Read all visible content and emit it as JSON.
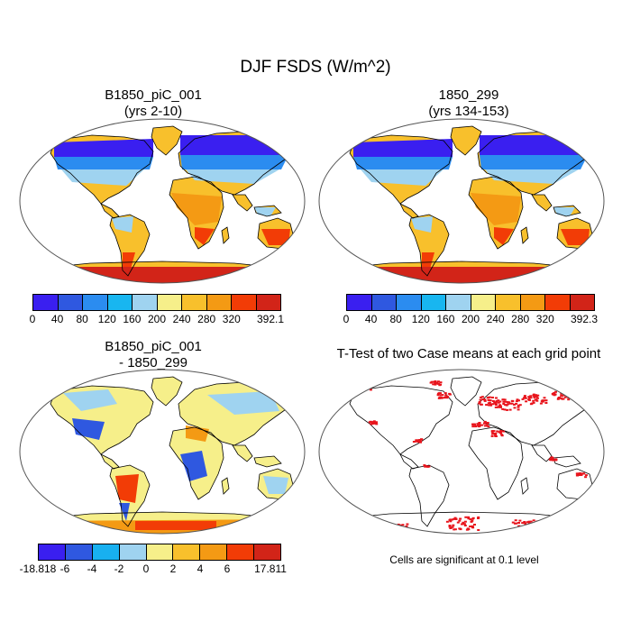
{
  "title": "DJF FSDS (W/m^2)",
  "panels": {
    "top_left": {
      "title_line1": "B1850_piC_001",
      "title_line2": "(yrs 2-10)",
      "colorbar": {
        "labels": [
          "0",
          "40",
          "80",
          "120",
          "160",
          "200",
          "240",
          "280",
          "320",
          "392.1"
        ],
        "colors": [
          "#3a1ff0",
          "#2f58e0",
          "#2b8cf0",
          "#18b6f0",
          "#9fd3f0",
          "#f6ef8a",
          "#f8c02c",
          "#f49a14",
          "#f23c06",
          "#d22418"
        ]
      }
    },
    "top_right": {
      "title_line1": "1850_299",
      "title_line2": "(yrs 134-153)",
      "colorbar": {
        "labels": [
          "0",
          "40",
          "80",
          "120",
          "160",
          "200",
          "240",
          "280",
          "320",
          "392.3"
        ],
        "colors": [
          "#3a1ff0",
          "#2f58e0",
          "#2b8cf0",
          "#18b6f0",
          "#9fd3f0",
          "#f6ef8a",
          "#f8c02c",
          "#f49a14",
          "#f23c06",
          "#d22418"
        ]
      }
    },
    "bottom_left": {
      "title_line1": "B1850_piC_001",
      "title_line2": "- 1850_299",
      "colorbar": {
        "labels": [
          "-18.818",
          "-6",
          "-4",
          "-2",
          "0",
          "2",
          "4",
          "6",
          "17.811"
        ],
        "colors": [
          "#3a1ff0",
          "#2f58e0",
          "#18b0f0",
          "#9fd3f0",
          "#f6ef8a",
          "#f8c02c",
          "#f49a14",
          "#f23c06",
          "#d22418"
        ]
      }
    },
    "bottom_right": {
      "title": "T-Test of two Case means at each grid point",
      "footnote": "Cells are significant at 0.1 level",
      "significant_color": "#e8141c"
    }
  }
}
